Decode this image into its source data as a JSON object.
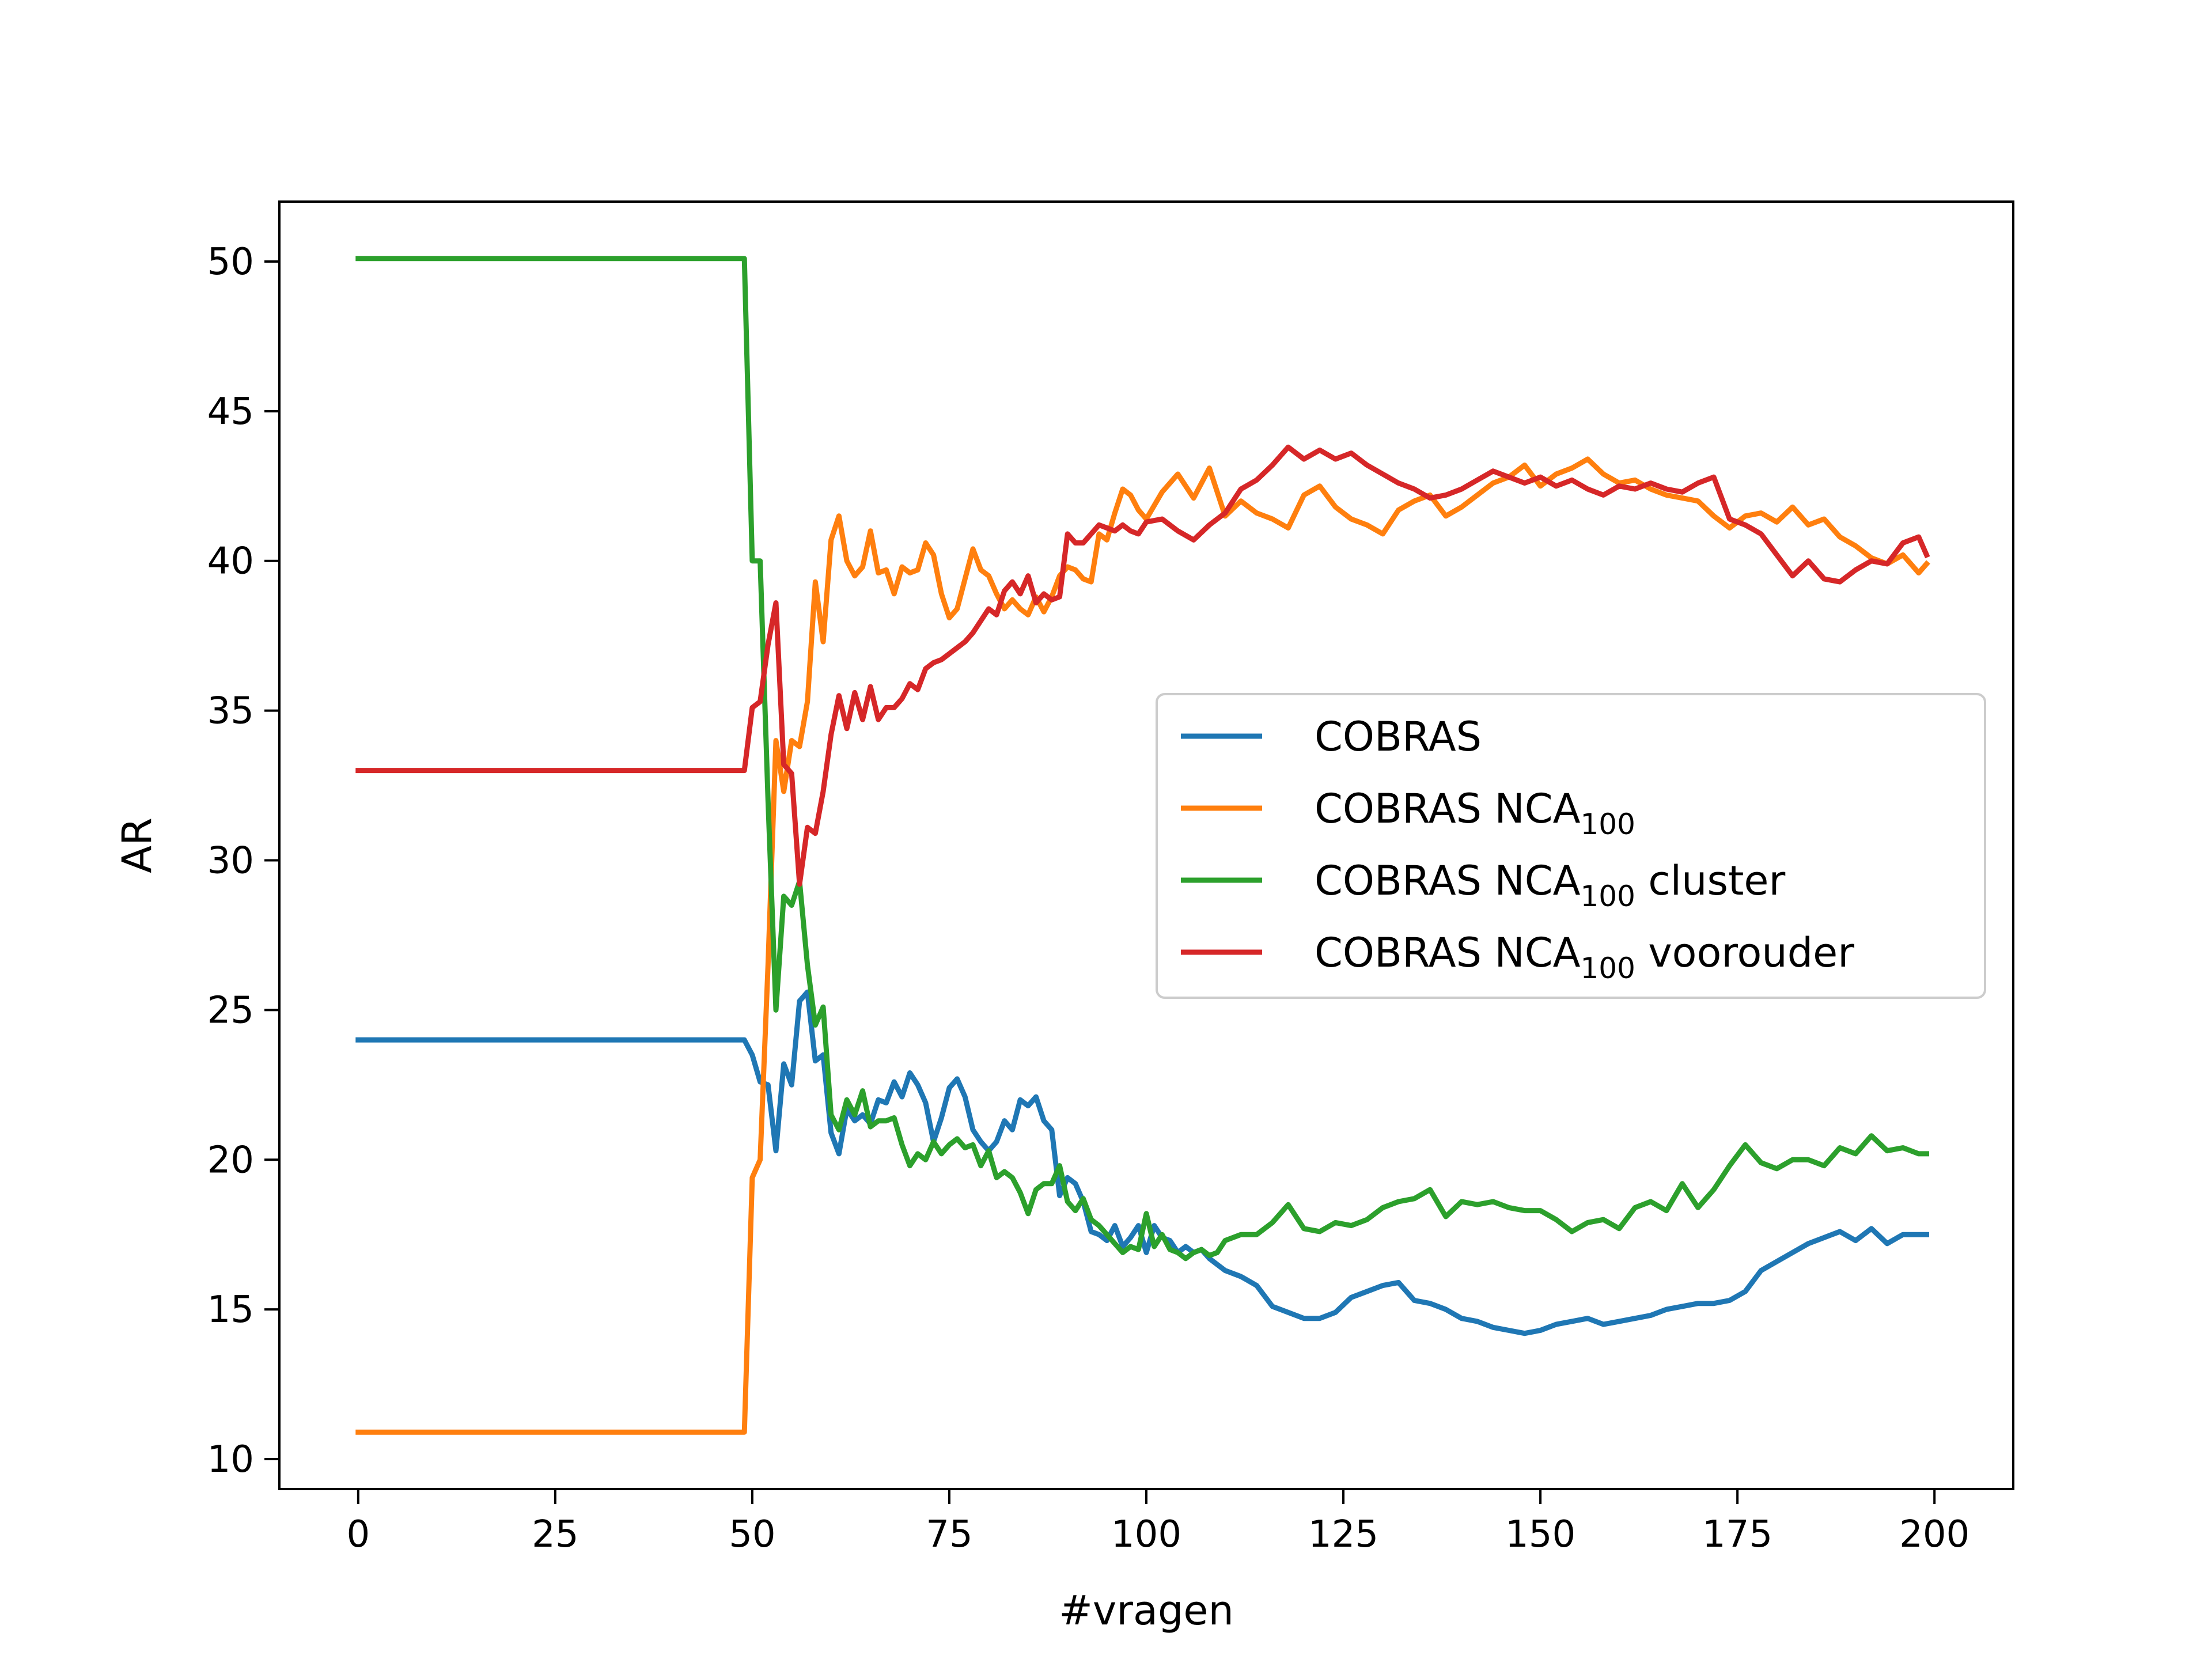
{
  "chart_data": {
    "type": "line",
    "title": "",
    "xlabel": "#vragen",
    "ylabel": "AR",
    "xlim": [
      -10,
      210
    ],
    "ylim": [
      9,
      52
    ],
    "xticks": [
      0,
      25,
      50,
      75,
      100,
      125,
      150,
      175,
      200
    ],
    "yticks": [
      10,
      15,
      20,
      25,
      30,
      35,
      40,
      45,
      50
    ],
    "grid": false,
    "legend_position": "center-right",
    "series": [
      {
        "name": "COBRAS",
        "name_main": "COBRAS",
        "name_sub": "",
        "name_suffix": "",
        "color": "#1f77b4",
        "x": [
          0,
          49,
          50,
          51,
          52,
          53,
          54,
          55,
          56,
          57,
          58,
          59,
          60,
          61,
          62,
          63,
          64,
          65,
          66,
          67,
          68,
          69,
          70,
          71,
          72,
          73,
          74,
          75,
          76,
          77,
          78,
          79,
          80,
          81,
          82,
          83,
          84,
          85,
          86,
          87,
          88,
          89,
          90,
          91,
          92,
          93,
          94,
          95,
          96,
          97,
          98,
          99,
          100,
          101,
          102,
          103,
          104,
          105,
          106,
          107,
          108,
          109,
          110,
          112,
          114,
          116,
          118,
          120,
          122,
          124,
          126,
          128,
          130,
          132,
          134,
          136,
          138,
          140,
          142,
          144,
          146,
          148,
          150,
          152,
          154,
          156,
          158,
          160,
          162,
          164,
          166,
          168,
          170,
          172,
          174,
          176,
          178,
          180,
          182,
          184,
          186,
          188,
          190,
          192,
          194,
          196,
          198,
          199
        ],
        "y": [
          24,
          24,
          23.5,
          22.6,
          22.5,
          20.3,
          23.2,
          22.5,
          25.3,
          25.6,
          23.3,
          23.5,
          20.9,
          20.2,
          21.7,
          21.3,
          21.5,
          21.2,
          22,
          21.9,
          22.6,
          22.1,
          22.9,
          22.5,
          21.9,
          20.6,
          21.4,
          22.4,
          22.7,
          22.1,
          21,
          20.6,
          20.3,
          20.6,
          21.3,
          21,
          22,
          21.8,
          22.1,
          21.3,
          21,
          18.8,
          19.4,
          19.2,
          18.6,
          17.6,
          17.5,
          17.3,
          17.8,
          17.1,
          17.4,
          17.8,
          16.9,
          17.8,
          17.4,
          17.3,
          16.9,
          17.1,
          16.9,
          17.0,
          16.7,
          16.5,
          16.3,
          16.1,
          15.8,
          15.1,
          14.9,
          14.7,
          14.7,
          14.9,
          15.4,
          15.6,
          15.8,
          15.9,
          15.3,
          15.2,
          15.0,
          14.7,
          14.6,
          14.4,
          14.3,
          14.2,
          14.3,
          14.5,
          14.6,
          14.7,
          14.5,
          14.6,
          14.7,
          14.8,
          15.0,
          15.1,
          15.2,
          15.2,
          15.3,
          15.6,
          16.3,
          16.6,
          16.9,
          17.2,
          17.4,
          17.6,
          17.3,
          17.7,
          17.2,
          17.5,
          17.5,
          17.5
        ]
      },
      {
        "name": "COBRAS NCA100",
        "name_main": "COBRAS NCA",
        "name_sub": "100",
        "name_suffix": "",
        "color": "#ff7f0e",
        "x": [
          0,
          49,
          50,
          51,
          52,
          53,
          54,
          55,
          56,
          57,
          58,
          59,
          60,
          61,
          62,
          63,
          64,
          65,
          66,
          67,
          68,
          69,
          70,
          71,
          72,
          73,
          74,
          75,
          76,
          77,
          78,
          79,
          80,
          81,
          82,
          83,
          84,
          85,
          86,
          87,
          88,
          89,
          90,
          91,
          92,
          93,
          94,
          95,
          96,
          97,
          98,
          99,
          100,
          102,
          104,
          106,
          108,
          110,
          112,
          114,
          116,
          118,
          120,
          122,
          124,
          126,
          128,
          130,
          132,
          134,
          136,
          138,
          140,
          142,
          144,
          146,
          148,
          150,
          152,
          154,
          156,
          158,
          160,
          162,
          164,
          166,
          168,
          170,
          172,
          174,
          176,
          178,
          180,
          182,
          184,
          186,
          188,
          190,
          192,
          194,
          196,
          198,
          199
        ],
        "y": [
          10.9,
          10.9,
          19.4,
          20,
          26.5,
          34,
          32.3,
          34,
          33.8,
          35.3,
          39.3,
          37.3,
          40.7,
          41.5,
          40,
          39.5,
          39.8,
          41,
          39.6,
          39.7,
          38.9,
          39.8,
          39.6,
          39.7,
          40.6,
          40.2,
          38.9,
          38.1,
          38.4,
          39.4,
          40.4,
          39.7,
          39.5,
          38.9,
          38.4,
          38.7,
          38.4,
          38.2,
          38.8,
          38.3,
          38.8,
          39.5,
          39.8,
          39.7,
          39.4,
          39.3,
          40.9,
          40.7,
          41.6,
          42.4,
          42.2,
          41.7,
          41.4,
          42.3,
          42.9,
          42.1,
          43.1,
          41.5,
          42.0,
          41.6,
          41.4,
          41.1,
          42.2,
          42.5,
          41.8,
          41.4,
          41.2,
          40.9,
          41.7,
          42.0,
          42.2,
          41.5,
          41.8,
          42.2,
          42.6,
          42.8,
          43.2,
          42.5,
          42.9,
          43.1,
          43.4,
          42.9,
          42.6,
          42.7,
          42.4,
          42.2,
          42.1,
          42.0,
          41.5,
          41.1,
          41.5,
          41.6,
          41.3,
          41.8,
          41.2,
          41.4,
          40.8,
          40.5,
          40.1,
          39.9,
          40.2,
          39.6,
          39.9
        ]
      },
      {
        "name": "COBRAS NCA100 cluster",
        "name_main": "COBRAS NCA",
        "name_sub": "100",
        "name_suffix": " cluster",
        "color": "#2ca02c",
        "x": [
          0,
          49,
          50,
          51,
          52,
          53,
          54,
          55,
          56,
          57,
          58,
          59,
          60,
          61,
          62,
          63,
          64,
          65,
          66,
          67,
          68,
          69,
          70,
          71,
          72,
          73,
          74,
          75,
          76,
          77,
          78,
          79,
          80,
          81,
          82,
          83,
          84,
          85,
          86,
          87,
          88,
          89,
          90,
          91,
          92,
          93,
          94,
          95,
          96,
          97,
          98,
          99,
          100,
          101,
          102,
          103,
          104,
          105,
          106,
          107,
          108,
          109,
          110,
          112,
          114,
          116,
          118,
          120,
          122,
          124,
          126,
          128,
          130,
          132,
          134,
          136,
          138,
          140,
          142,
          144,
          146,
          148,
          150,
          152,
          154,
          156,
          158,
          160,
          162,
          164,
          166,
          168,
          170,
          172,
          174,
          176,
          178,
          180,
          182,
          184,
          186,
          188,
          190,
          192,
          194,
          196,
          198,
          199
        ],
        "y": [
          50.1,
          50.1,
          40,
          40,
          32,
          25,
          28.8,
          28.5,
          29.3,
          26.5,
          24.5,
          25.1,
          21.5,
          21,
          22,
          21.5,
          22.3,
          21.1,
          21.3,
          21.3,
          21.4,
          20.5,
          19.8,
          20.2,
          20,
          20.6,
          20.2,
          20.5,
          20.7,
          20.4,
          20.5,
          19.8,
          20.3,
          19.4,
          19.6,
          19.4,
          18.9,
          18.2,
          19.0,
          19.2,
          19.2,
          19.8,
          18.6,
          18.3,
          18.7,
          18.0,
          17.8,
          17.5,
          17.2,
          16.9,
          17.1,
          17.0,
          18.2,
          17.1,
          17.5,
          17.0,
          16.9,
          16.7,
          16.9,
          17.0,
          16.8,
          16.9,
          17.3,
          17.5,
          17.5,
          17.9,
          18.5,
          17.7,
          17.6,
          17.9,
          17.8,
          18.0,
          18.4,
          18.6,
          18.7,
          19.0,
          18.1,
          18.6,
          18.5,
          18.6,
          18.4,
          18.3,
          18.3,
          18.0,
          17.6,
          17.9,
          18.0,
          17.7,
          18.4,
          18.6,
          18.3,
          19.2,
          18.4,
          19.0,
          19.8,
          20.5,
          19.9,
          19.7,
          20.0,
          20.0,
          19.8,
          20.4,
          20.2,
          20.8,
          20.3,
          20.4,
          20.2,
          20.2
        ]
      },
      {
        "name": "COBRAS NCA100 voorouder",
        "name_main": "COBRAS NCA",
        "name_sub": "100",
        "name_suffix": " voorouder",
        "color": "#d62728",
        "x": [
          0,
          49,
          50,
          51,
          52,
          53,
          54,
          55,
          56,
          57,
          58,
          59,
          60,
          61,
          62,
          63,
          64,
          65,
          66,
          67,
          68,
          69,
          70,
          71,
          72,
          73,
          74,
          75,
          76,
          77,
          78,
          79,
          80,
          81,
          82,
          83,
          84,
          85,
          86,
          87,
          88,
          89,
          90,
          91,
          92,
          93,
          94,
          95,
          96,
          97,
          98,
          99,
          100,
          102,
          104,
          106,
          108,
          110,
          112,
          114,
          116,
          118,
          120,
          122,
          124,
          126,
          128,
          130,
          132,
          134,
          136,
          138,
          140,
          142,
          144,
          146,
          148,
          150,
          152,
          154,
          156,
          158,
          160,
          162,
          164,
          166,
          168,
          170,
          172,
          174,
          176,
          178,
          180,
          182,
          184,
          186,
          188,
          190,
          192,
          194,
          196,
          198,
          199
        ],
        "y": [
          33,
          33,
          35.1,
          35.3,
          37.2,
          38.6,
          33.2,
          32.9,
          29.2,
          31.1,
          30.9,
          32.3,
          34.2,
          35.5,
          34.4,
          35.6,
          34.7,
          35.8,
          34.7,
          35.1,
          35.1,
          35.4,
          35.9,
          35.7,
          36.4,
          36.6,
          36.7,
          36.9,
          37.1,
          37.3,
          37.6,
          38.0,
          38.4,
          38.2,
          39.0,
          39.3,
          38.9,
          39.5,
          38.6,
          38.9,
          38.7,
          38.8,
          40.9,
          40.6,
          40.6,
          40.9,
          41.2,
          41.1,
          41.0,
          41.2,
          41.0,
          40.9,
          41.3,
          41.4,
          41.0,
          40.7,
          41.2,
          41.6,
          42.4,
          42.7,
          43.2,
          43.8,
          43.4,
          43.7,
          43.4,
          43.6,
          43.2,
          42.9,
          42.6,
          42.4,
          42.1,
          42.2,
          42.4,
          42.7,
          43.0,
          42.8,
          42.6,
          42.8,
          42.5,
          42.7,
          42.4,
          42.2,
          42.5,
          42.4,
          42.6,
          42.4,
          42.3,
          42.6,
          42.8,
          41.4,
          41.2,
          40.9,
          40.2,
          39.5,
          40.0,
          39.4,
          39.3,
          39.7,
          40.0,
          39.9,
          40.6,
          40.8,
          40.2
        ]
      }
    ]
  }
}
